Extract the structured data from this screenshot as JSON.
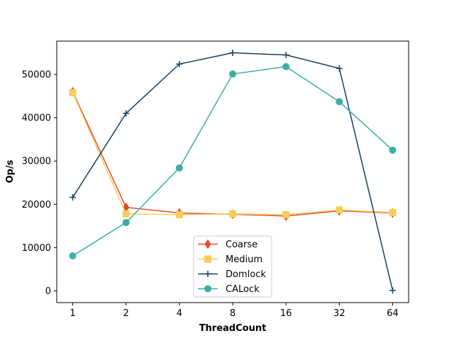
{
  "chart_data": {
    "type": "line",
    "title": "",
    "xlabel": "ThreadCount",
    "ylabel": "Op/s",
    "categories": [
      "1",
      "2",
      "4",
      "8",
      "16",
      "32",
      "64"
    ],
    "ylim": [
      -2700,
      57700
    ],
    "yticks": [
      0,
      10000,
      20000,
      30000,
      40000,
      50000
    ],
    "grid": false,
    "legend_position": "lower center",
    "series": [
      {
        "name": "Coarse",
        "color": "#e24a33",
        "marker": "diamond",
        "values": [
          46000,
          19300,
          18000,
          17700,
          17300,
          18500,
          18000
        ]
      },
      {
        "name": "Medium",
        "color": "#f5ce5a",
        "marker": "square",
        "values": [
          45800,
          17800,
          17600,
          17800,
          17600,
          18700,
          18100
        ]
      },
      {
        "name": "Domlock",
        "color": "#173f5f",
        "marker": "plus",
        "values": [
          21600,
          41000,
          52400,
          55000,
          54500,
          51400,
          100
        ]
      },
      {
        "name": "CALock",
        "color": "#3caea3",
        "marker": "circle",
        "values": [
          8100,
          15800,
          28400,
          50100,
          51800,
          43700,
          32500
        ]
      }
    ]
  }
}
